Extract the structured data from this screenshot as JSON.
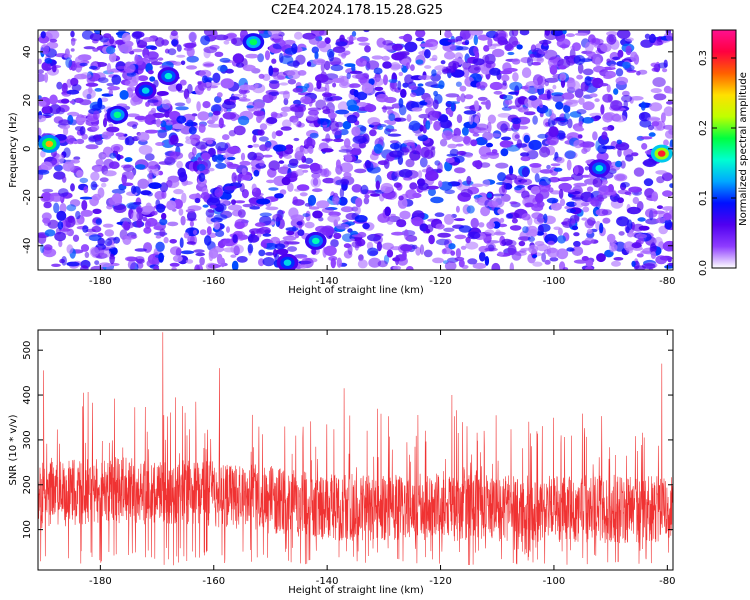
{
  "title": "C2E4.2024.178.15.28.G25",
  "chart_data": [
    {
      "type": "heatmap",
      "xlabel": "Height of straight line (km)",
      "ylabel": "Frequency (Hz)",
      "xlim": [
        -191,
        -79
      ],
      "ylim": [
        -50,
        49
      ],
      "xticks": [
        -180,
        -160,
        -140,
        -120,
        -100,
        -80
      ],
      "yticks": [
        -40,
        -20,
        0,
        20,
        40
      ],
      "colorbar": {
        "label": "Normalized spectral amplitude",
        "range": [
          0,
          0.34
        ],
        "ticks": [
          0.0,
          0.1,
          0.2,
          0.3
        ],
        "tick_labels": [
          "0.0",
          "0.1",
          "0.2",
          "0.3"
        ],
        "colors": [
          "#ffffff",
          "#8e3cff",
          "#5000f0",
          "#0010ff",
          "#00a8ff",
          "#00ffd0",
          "#00ff40",
          "#c0ff00",
          "#ffe000",
          "#ff6000",
          "#ff0040",
          "#ff1090"
        ]
      },
      "features": [
        {
          "x": -189,
          "y": 2,
          "value": 0.26
        },
        {
          "x": -177,
          "y": 14,
          "value": 0.17
        },
        {
          "x": -172,
          "y": 24,
          "value": 0.14
        },
        {
          "x": -168,
          "y": 30,
          "value": 0.15
        },
        {
          "x": -153,
          "y": 44,
          "value": 0.18
        },
        {
          "x": -142,
          "y": -38,
          "value": 0.16
        },
        {
          "x": -147,
          "y": -47,
          "value": 0.14
        },
        {
          "x": -92,
          "y": -8,
          "value": 0.15
        },
        {
          "x": -81,
          "y": -2,
          "value": 0.3
        }
      ]
    },
    {
      "type": "line",
      "xlabel": "Height of straight line (km)",
      "ylabel": "SNR (10 * v/v)",
      "xlim": [
        -191,
        -79
      ],
      "ylim": [
        10,
        545
      ],
      "xticks": [
        -180,
        -160,
        -140,
        -120,
        -100,
        -80
      ],
      "yticks": [
        100,
        200,
        300,
        400,
        500
      ],
      "series_color": "#f03232",
      "baseline": [
        {
          "x": -191,
          "y": 175
        },
        {
          "x": -180,
          "y": 190
        },
        {
          "x": -160,
          "y": 180
        },
        {
          "x": -140,
          "y": 150
        },
        {
          "x": -120,
          "y": 150
        },
        {
          "x": -100,
          "y": 145
        },
        {
          "x": -80,
          "y": 145
        }
      ],
      "peaks": [
        {
          "x": -190,
          "y": 455
        },
        {
          "x": -183,
          "y": 405
        },
        {
          "x": -169,
          "y": 540
        },
        {
          "x": -159,
          "y": 460
        },
        {
          "x": -137,
          "y": 415
        },
        {
          "x": -118,
          "y": 400
        },
        {
          "x": -81,
          "y": 470
        }
      ]
    }
  ]
}
